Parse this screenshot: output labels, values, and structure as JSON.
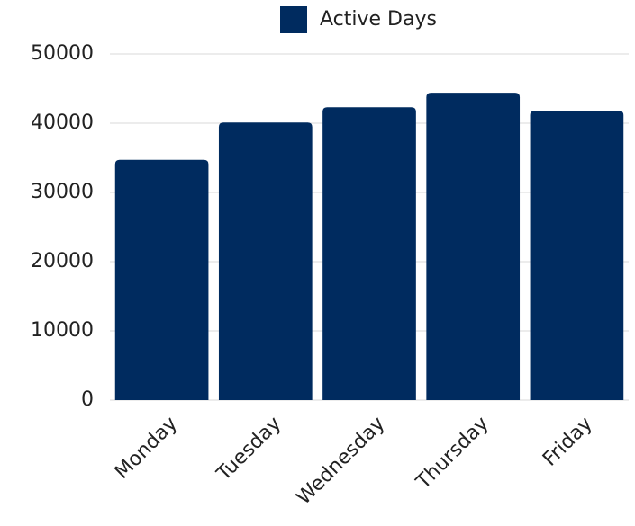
{
  "chart_data": {
    "type": "bar",
    "legend": "Active Days",
    "categories": [
      "Monday",
      "Tuesday",
      "Wednesday",
      "Thursday",
      "Friday"
    ],
    "values": [
      34700,
      40100,
      42300,
      44400,
      41800
    ],
    "color": "#002b5f",
    "ylim": [
      0,
      50000
    ],
    "yticks": [
      0,
      10000,
      20000,
      30000,
      40000,
      50000
    ],
    "grid": true,
    "legend_position": "top"
  }
}
